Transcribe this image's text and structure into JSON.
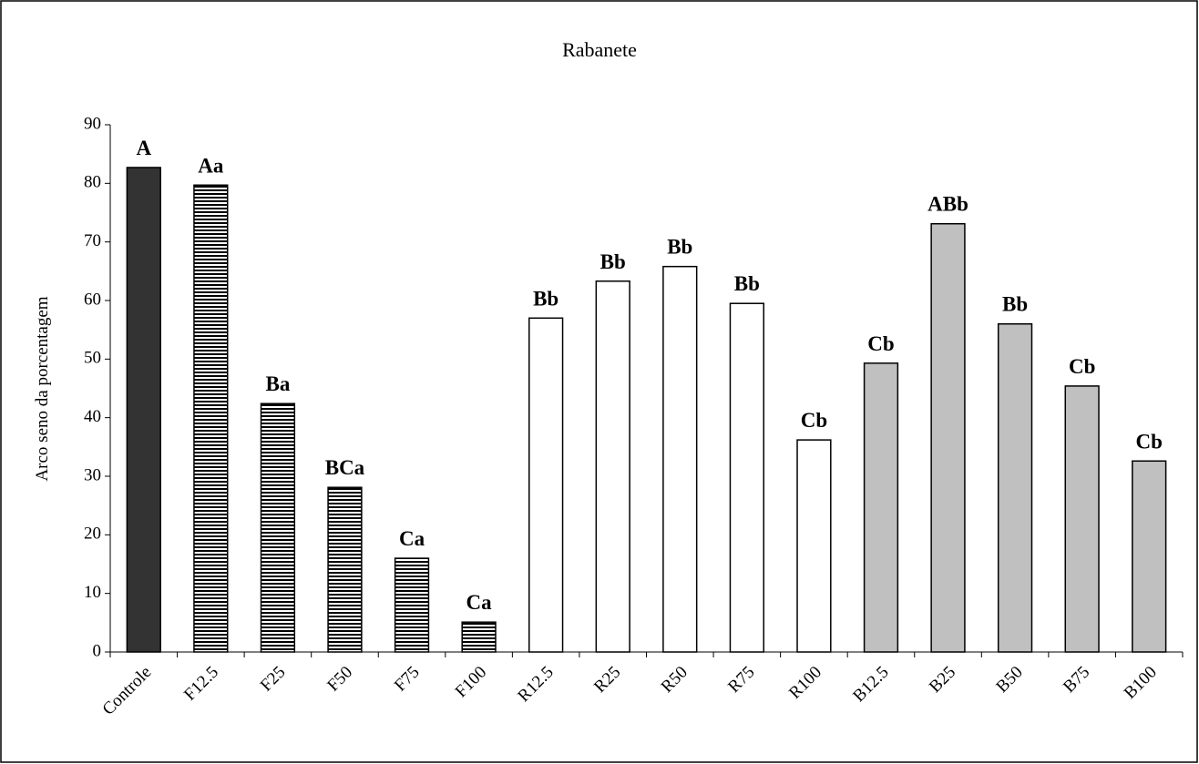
{
  "chart_data": {
    "type": "bar",
    "title": "Rabanete",
    "y_label": "Arco seno da porcentagem",
    "categories": [
      "Controle",
      "F12.5",
      "F25",
      "F50",
      "F75",
      "F100",
      "R12.5",
      "R25",
      "R50",
      "R75",
      "R100",
      "B12.5",
      "B25",
      "B50",
      "B75",
      "B100"
    ],
    "values": [
      82.7,
      79.7,
      42.4,
      28.1,
      16.0,
      5.1,
      57.0,
      63.3,
      65.8,
      59.5,
      36.2,
      49.3,
      73.1,
      56.0,
      45.4,
      32.6
    ],
    "annotations": [
      "A",
      "Aa",
      "Ba",
      "BCa",
      "Ca",
      "Ca",
      "Bb",
      "Bb",
      "Bb",
      "Bb",
      "Cb",
      "Cb",
      "ABb",
      "Bb",
      "Cb",
      "Cb"
    ],
    "colors": [
      "#333333",
      "#ffffff",
      "#ffffff",
      "#ffffff",
      "#ffffff",
      "#ffffff",
      "#ffffff",
      "#ffffff",
      "#ffffff",
      "#ffffff",
      "#ffffff",
      "#c0c0c0",
      "#c0c0c0",
      "#c0c0c0",
      "#c0c0c0",
      "#c0c0c0"
    ],
    "striped": [
      false,
      true,
      true,
      true,
      true,
      true,
      false,
      false,
      false,
      false,
      false,
      false,
      false,
      false,
      false,
      false
    ],
    "ylim": [
      0,
      90
    ],
    "yticks": [
      0,
      10,
      20,
      30,
      40,
      50,
      60,
      70,
      80,
      90
    ],
    "grid": false
  }
}
